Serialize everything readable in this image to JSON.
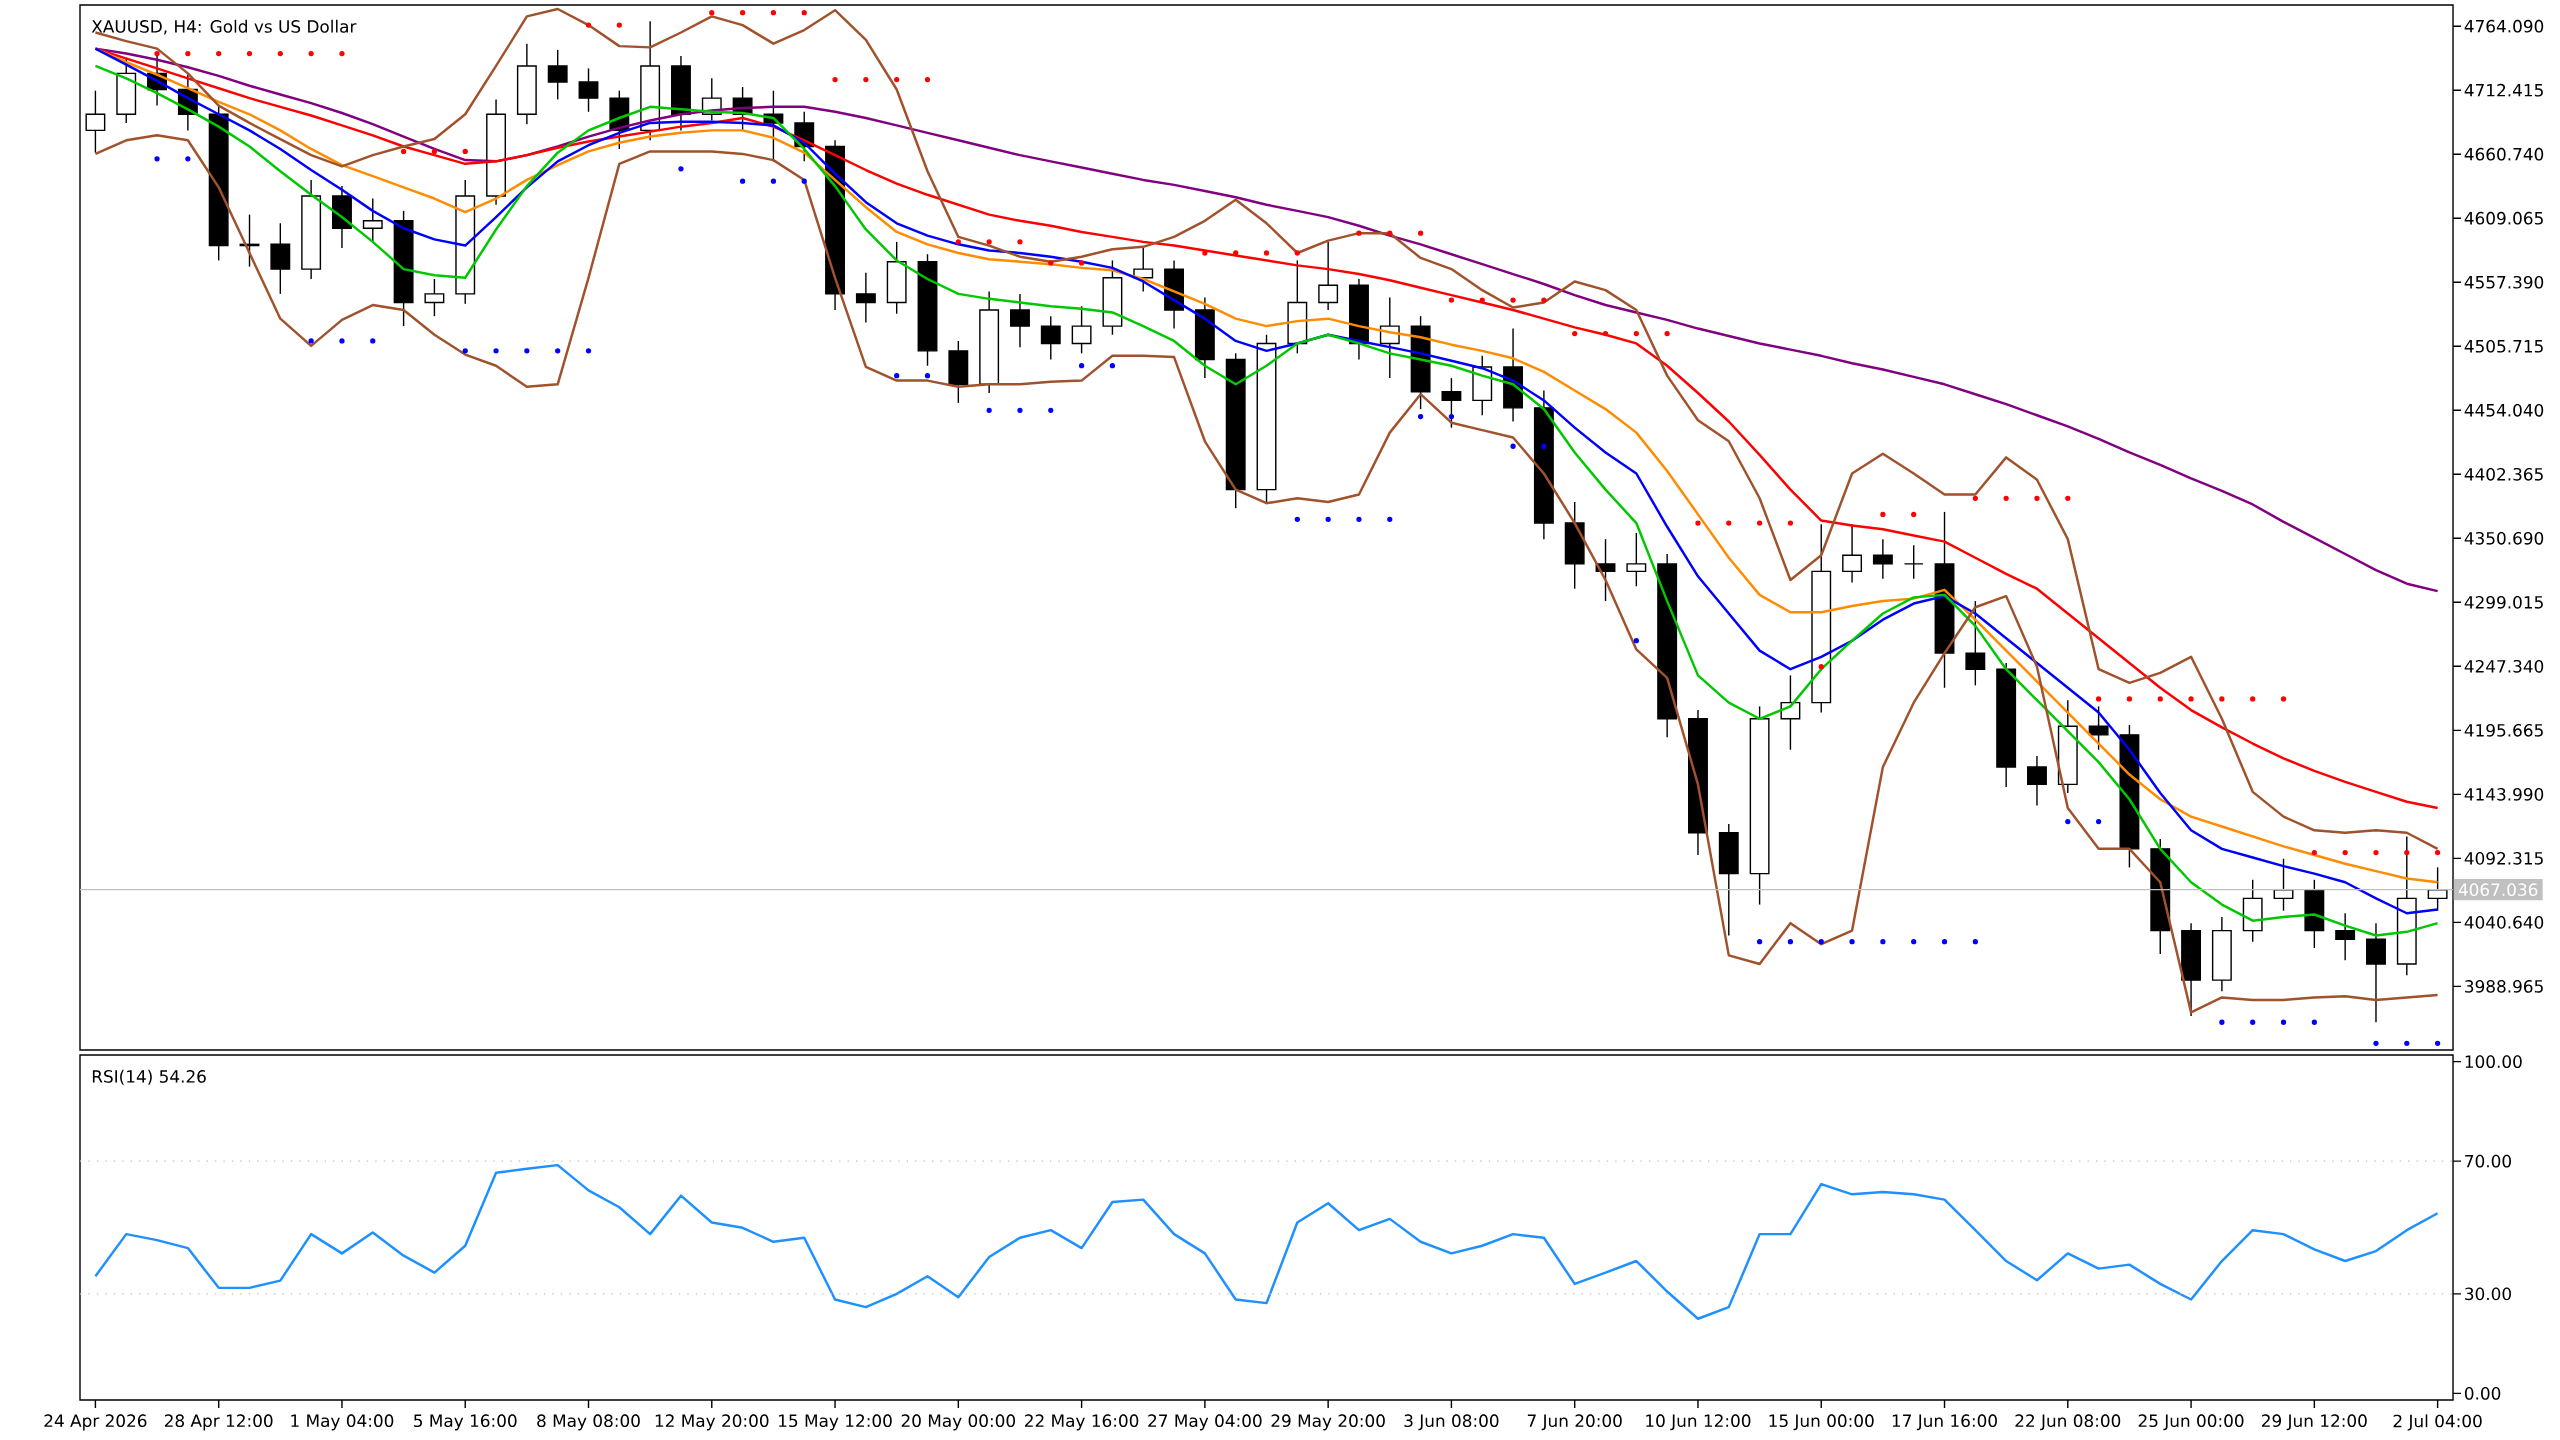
{
  "chart_data": [
    {
      "type": "candlestick",
      "title": "XAUUSD, H4:  Gold vs US Dollar",
      "categories": [
        null,
        null,
        null,
        null,
        null,
        null,
        null,
        null,
        null,
        null,
        null,
        null,
        null,
        null,
        null,
        null,
        null,
        null,
        null,
        null,
        null,
        null,
        null,
        null,
        null,
        null,
        null,
        null,
        null,
        null,
        null,
        null,
        null,
        null,
        null,
        null,
        null,
        null,
        null,
        null,
        null,
        null,
        null,
        null,
        null,
        null,
        null,
        null,
        null,
        null,
        null,
        null,
        null,
        null,
        null,
        null,
        null,
        null,
        null,
        null,
        null,
        null,
        null,
        null,
        null,
        null,
        null,
        null,
        null,
        null,
        null,
        null,
        null,
        null,
        null,
        null,
        null
      ],
      "ohlc": [
        [
          4680,
          4712,
          4662,
          4693
        ],
        [
          4693,
          4738,
          4686,
          4726
        ],
        [
          4726,
          4740,
          4700,
          4713
        ],
        [
          4713,
          4725,
          4680,
          4693
        ],
        [
          4693,
          4700,
          4575,
          4587
        ],
        [
          4587,
          4612,
          4570,
          4588
        ],
        [
          4588,
          4605,
          4548,
          4568
        ],
        [
          4568,
          4640,
          4560,
          4627
        ],
        [
          4627,
          4635,
          4585,
          4601
        ],
        [
          4601,
          4625,
          4590,
          4607
        ],
        [
          4607,
          4615,
          4522,
          4541
        ],
        [
          4541,
          4560,
          4530,
          4548
        ],
        [
          4548,
          4640,
          4540,
          4627
        ],
        [
          4627,
          4705,
          4620,
          4693
        ],
        [
          4693,
          4750,
          4685,
          4732
        ],
        [
          4732,
          4745,
          4705,
          4719
        ],
        [
          4719,
          4730,
          4695,
          4706
        ],
        [
          4706,
          4712,
          4665,
          4680
        ],
        [
          4680,
          4768,
          4672,
          4732
        ],
        [
          4732,
          4740,
          4680,
          4693
        ],
        [
          4693,
          4722,
          4688,
          4706
        ],
        [
          4706,
          4715,
          4680,
          4693
        ],
        [
          4693,
          4712,
          4655,
          4686
        ],
        [
          4686,
          4695,
          4655,
          4667
        ],
        [
          4667,
          4672,
          4535,
          4548
        ],
        [
          4548,
          4565,
          4525,
          4541
        ],
        [
          4541,
          4590,
          4532,
          4574
        ],
        [
          4574,
          4580,
          4490,
          4502
        ],
        [
          4502,
          4510,
          4460,
          4475
        ],
        [
          4475,
          4550,
          4468,
          4535
        ],
        [
          4535,
          4548,
          4505,
          4522
        ],
        [
          4522,
          4530,
          4495,
          4508
        ],
        [
          4508,
          4538,
          4500,
          4522
        ],
        [
          4522,
          4575,
          4515,
          4561
        ],
        [
          4561,
          4585,
          4550,
          4568
        ],
        [
          4568,
          4575,
          4520,
          4535
        ],
        [
          4535,
          4545,
          4480,
          4495
        ],
        [
          4495,
          4500,
          4375,
          4390
        ],
        [
          4390,
          4515,
          4380,
          4508
        ],
        [
          4508,
          4575,
          4500,
          4541
        ],
        [
          4541,
          4590,
          4535,
          4555
        ],
        [
          4555,
          4560,
          4495,
          4508
        ],
        [
          4508,
          4545,
          4480,
          4522
        ],
        [
          4522,
          4530,
          4455,
          4469
        ],
        [
          4469,
          4480,
          4440,
          4462
        ],
        [
          4462,
          4498,
          4450,
          4489
        ],
        [
          4489,
          4520,
          4445,
          4456
        ],
        [
          4456,
          4470,
          4350,
          4363
        ],
        [
          4363,
          4380,
          4310,
          4330
        ],
        [
          4330,
          4350,
          4300,
          4324
        ],
        [
          4324,
          4355,
          4312,
          4330
        ],
        [
          4330,
          4338,
          4190,
          4205
        ],
        [
          4205,
          4212,
          4095,
          4113
        ],
        [
          4113,
          4120,
          4030,
          4080
        ],
        [
          4080,
          4215,
          4055,
          4205
        ],
        [
          4205,
          4240,
          4180,
          4218
        ],
        [
          4218,
          4362,
          4210,
          4324
        ],
        [
          4324,
          4362,
          4315,
          4337
        ],
        [
          4337,
          4350,
          4318,
          4330
        ],
        [
          4330,
          4345,
          4318,
          4330
        ],
        [
          4330,
          4372,
          4230,
          4258
        ],
        [
          4258,
          4300,
          4232,
          4245
        ],
        [
          4245,
          4250,
          4150,
          4166
        ],
        [
          4166,
          4175,
          4135,
          4152
        ],
        [
          4152,
          4220,
          4145,
          4199
        ],
        [
          4199,
          4215,
          4180,
          4192
        ],
        [
          4192,
          4200,
          4085,
          4100
        ],
        [
          4100,
          4108,
          4015,
          4034
        ],
        [
          4034,
          4040,
          3965,
          3994
        ],
        [
          3994,
          4045,
          3985,
          4034
        ],
        [
          4034,
          4075,
          4025,
          4060
        ],
        [
          4060,
          4092,
          4050,
          4067
        ],
        [
          4067,
          4075,
          4020,
          4034
        ],
        [
          4034,
          4048,
          4010,
          4027
        ],
        [
          4027,
          4040,
          3960,
          4007
        ],
        [
          4007,
          4110,
          3998,
          4060
        ],
        [
          4060,
          4085,
          4050,
          4067
        ]
      ],
      "color": "#000000",
      "ylim": [
        3937.6,
        4781.2
      ],
      "yticks": [
        3988.965,
        {
          "value": 4040.64,
          "label": "4040.640"
        },
        4092.315,
        {
          "value": 4143.99,
          "label": "4143.990"
        },
        4195.665,
        {
          "value": 4247.34,
          "label": "4247.340"
        },
        4299.015,
        {
          "value": 4350.69,
          "label": "4350.690"
        },
        4402.365,
        {
          "value": 4454.04,
          "label": "4454.040"
        },
        4505.715,
        {
          "value": 4557.39,
          "label": "4557.390"
        },
        4609.065,
        {
          "value": 4660.74,
          "label": "4660.740"
        },
        4712.415,
        {
          "value": 4764.09,
          "label": "4764.090"
        }
      ],
      "tick_labels": "y",
      "ref_lines": [
        {
          "axis": "y",
          "value": 4067.036,
          "label": "4067.036",
          "color": "#c0c0c0"
        }
      ],
      "series": [
        {
          "type": "line",
          "color": "#800080",
          "values": [
            4746,
            4742,
            4737,
            4731,
            4724,
            4716,
            4709,
            4702,
            4694,
            4685,
            4675,
            4665,
            4656,
            4655,
            4660,
            4667,
            4675,
            4682,
            4688,
            4693,
            4696,
            4698,
            4699,
            4699,
            4695,
            4690,
            4684,
            4678,
            4672,
            4666,
            4660,
            4655,
            4650,
            4645,
            4640,
            4636,
            4631,
            4626,
            4620,
            4615,
            4610,
            4603,
            4595,
            4588,
            4580,
            4572,
            4564,
            4556,
            4547,
            4539,
            4533,
            4527,
            4520,
            4514,
            4508,
            4503,
            4498,
            4492,
            4487,
            4481,
            4475,
            4467,
            4459,
            4450,
            4441,
            4431,
            4420,
            4410,
            4399,
            4389,
            4378,
            4364,
            4351,
            4338,
            4325,
            4314,
            4308
          ]
        },
        {
          "type": "line",
          "color": "#ff0000",
          "values": [
            4746,
            4738,
            4730,
            4722,
            4714,
            4706,
            4699,
            4692,
            4684,
            4676,
            4667,
            4660,
            4653,
            4655,
            4660,
            4666,
            4671,
            4675,
            4679,
            4683,
            4686,
            4690,
            4683,
            4672,
            4660,
            4648,
            4637,
            4628,
            4620,
            4612,
            4607,
            4603,
            4598,
            4594,
            4590,
            4587,
            4583,
            4579,
            4575,
            4571,
            4568,
            4564,
            4559,
            4553,
            4547,
            4541,
            4535,
            4528,
            4521,
            4515,
            4508,
            4490,
            4468,
            4445,
            4418,
            4390,
            4365,
            4361,
            4358,
            4353,
            4348,
            4335,
            4322,
            4310,
            4290,
            4270,
            4250,
            4230,
            4212,
            4198,
            4185,
            4173,
            4163,
            4154,
            4146,
            4138,
            4133
          ]
        },
        {
          "type": "line",
          "color": "#ff8c00",
          "values": [
            4746,
            4735,
            4725,
            4714,
            4703,
            4693,
            4680,
            4665,
            4652,
            4643,
            4634,
            4625,
            4614,
            4625,
            4640,
            4652,
            4663,
            4670,
            4675,
            4678,
            4680,
            4680,
            4674,
            4662,
            4640,
            4618,
            4598,
            4588,
            4581,
            4576,
            4574,
            4572,
            4569,
            4567,
            4560,
            4550,
            4540,
            4528,
            4522,
            4526,
            4528,
            4522,
            4517,
            4513,
            4507,
            4502,
            4496,
            4485,
            4470,
            4455,
            4436,
            4405,
            4370,
            4335,
            4305,
            4291,
            4291,
            4296,
            4300,
            4302,
            4309,
            4285,
            4260,
            4235,
            4210,
            4185,
            4160,
            4140,
            4126,
            4118,
            4110,
            4102,
            4095,
            4088,
            4082,
            4076,
            4073
          ]
        },
        {
          "type": "line",
          "color": "#0000ff",
          "values": [
            4746,
            4733,
            4720,
            4706,
            4693,
            4680,
            4665,
            4648,
            4632,
            4615,
            4601,
            4592,
            4587,
            4610,
            4634,
            4655,
            4668,
            4678,
            4686,
            4687,
            4687,
            4686,
            4684,
            4670,
            4645,
            4622,
            4605,
            4595,
            4588,
            4583,
            4581,
            4578,
            4574,
            4569,
            4558,
            4543,
            4528,
            4510,
            4502,
            4508,
            4515,
            4510,
            4505,
            4500,
            4494,
            4488,
            4478,
            4462,
            4440,
            4420,
            4403,
            4360,
            4320,
            4290,
            4260,
            4245,
            4255,
            4268,
            4285,
            4298,
            4304,
            4290,
            4270,
            4250,
            4230,
            4210,
            4180,
            4145,
            4115,
            4100,
            4093,
            4086,
            4080,
            4073,
            4060,
            4048,
            4051
          ]
        },
        {
          "type": "line",
          "color": "#00c800",
          "values": [
            4732,
            4722,
            4710,
            4697,
            4683,
            4667,
            4647,
            4628,
            4610,
            4590,
            4568,
            4563,
            4561,
            4600,
            4635,
            4662,
            4680,
            4690,
            4699,
            4697,
            4695,
            4694,
            4690,
            4665,
            4635,
            4600,
            4575,
            4560,
            4548,
            4544,
            4541,
            4538,
            4536,
            4533,
            4522,
            4510,
            4490,
            4475,
            4490,
            4508,
            4515,
            4508,
            4500,
            4495,
            4490,
            4482,
            4475,
            4455,
            4420,
            4390,
            4363,
            4300,
            4240,
            4218,
            4205,
            4215,
            4245,
            4268,
            4290,
            4303,
            4305,
            4280,
            4245,
            4220,
            4195,
            4170,
            4140,
            4100,
            4073,
            4055,
            4042,
            4045,
            4047,
            4038,
            4030,
            4033,
            4040
          ]
        },
        {
          "type": "line",
          "color": "#a0522d",
          "values": [
            4759,
            4752,
            4746,
            4726,
            4700,
            4686,
            4673,
            4660,
            4651,
            4660,
            4667,
            4673,
            4693,
            4732,
            4772,
            4778,
            4765,
            4748,
            4747,
            4759,
            4772,
            4765,
            4750,
            4761,
            4777,
            4753,
            4713,
            4647,
            4594,
            4587,
            4578,
            4574,
            4578,
            4584,
            4586,
            4594,
            4607,
            4624,
            4605,
            4581,
            4591,
            4597,
            4597,
            4577,
            4568,
            4551,
            4537,
            4541,
            4558,
            4551,
            4535,
            4482,
            4446,
            4429,
            4383,
            4317,
            4337,
            4403,
            4419,
            4403,
            4386,
            4386,
            4416,
            4398,
            4350,
            4245,
            4234,
            4242,
            4255,
            4205,
            4146,
            4126,
            4115,
            4113,
            4115,
            4113,
            4100
          ]
        },
        {
          "type": "line",
          "color": "#a0522d",
          "values": [
            4661,
            4672,
            4676,
            4672,
            4634,
            4581,
            4528,
            4506,
            4527,
            4539,
            4535,
            4515,
            4499,
            4490,
            4473,
            4475,
            4561,
            4653,
            4663,
            4663,
            4663,
            4661,
            4656,
            4640,
            4561,
            4489,
            4478,
            4478,
            4473,
            4475,
            4475,
            4477,
            4478,
            4498,
            4498,
            4497,
            4429,
            4390,
            4379,
            4383,
            4380,
            4386,
            4436,
            4467,
            4444,
            4438,
            4432,
            4403,
            4363,
            4317,
            4261,
            4238,
            4152,
            4014,
            4007,
            4040,
            4023,
            4034,
            4166,
            4218,
            4258,
            4295,
            4304,
            4247,
            4133,
            4100,
            4100,
            4073,
            3968,
            3980,
            3978,
            3978,
            3980,
            3981,
            3978,
            3980,
            3982
          ]
        },
        {
          "type": "scatter",
          "color": "#ff0000",
          "marker": "circle",
          "values": [
            null,
            null,
            4742,
            4742,
            4742,
            4742,
            4742,
            4742,
            4742,
            null,
            4663,
            4663,
            4663,
            null,
            null,
            null,
            4765,
            4765,
            null,
            null,
            4775,
            4775,
            4775,
            4775,
            4721,
            4721,
            4721,
            4721,
            4590,
            4590,
            4590,
            4573,
            4573,
            null,
            null,
            null,
            4581,
            4581,
            4581,
            4581,
            null,
            4597,
            4597,
            4597,
            4543,
            4543,
            4543,
            4543,
            4516,
            4516,
            4516,
            4516,
            4363,
            4363,
            4363,
            4363,
            4247,
            null,
            4370,
            4370,
            null,
            4383,
            4383,
            4383,
            4383,
            4221,
            4221,
            4221,
            4221,
            4221,
            4221,
            4221,
            4097,
            4097,
            4097,
            4097,
            4097
          ]
        },
        {
          "type": "scatter",
          "color": "#0000ff",
          "marker": "circle",
          "values": [
            null,
            null,
            4657,
            4657,
            null,
            null,
            null,
            4510,
            4510,
            4510,
            null,
            null,
            4502,
            4502,
            4502,
            4502,
            4502,
            null,
            null,
            4649,
            null,
            4639,
            4639,
            4639,
            null,
            null,
            4482,
            4482,
            null,
            4454,
            4454,
            4454,
            4490,
            4490,
            null,
            null,
            null,
            null,
            null,
            4366,
            4366,
            4366,
            4366,
            4449,
            4449,
            null,
            4425,
            4425,
            null,
            null,
            4268,
            null,
            null,
            null,
            4025,
            4025,
            4025,
            4025,
            4025,
            4025,
            4025,
            4025,
            null,
            null,
            4122,
            4122,
            null,
            null,
            null,
            3960,
            3960,
            3960,
            3960,
            null,
            3943,
            3943,
            3943
          ]
        }
      ]
    },
    {
      "type": "line",
      "title": "RSI(14) 54.26",
      "categories": [
        "24 Apr 2026",
        null,
        null,
        null,
        "28 Apr 12:00",
        null,
        null,
        null,
        "1 May 04:00",
        null,
        null,
        null,
        "5 May 16:00",
        null,
        null,
        null,
        "8 May 08:00",
        null,
        null,
        null,
        "12 May 20:00",
        null,
        null,
        null,
        "15 May 12:00",
        null,
        null,
        null,
        "20 May 00:00",
        null,
        null,
        null,
        "22 May 16:00",
        null,
        null,
        null,
        "27 May 04:00",
        null,
        null,
        null,
        "29 May 20:00",
        null,
        null,
        null,
        "3 Jun 08:00",
        null,
        null,
        null,
        "7 Jun 20:00",
        null,
        null,
        null,
        "10 Jun 12:00",
        null,
        null,
        null,
        "15 Jun 00:00",
        null,
        null,
        null,
        "17 Jun 16:00",
        null,
        null,
        null,
        "22 Jun 08:00",
        null,
        null,
        null,
        "25 Jun 00:00",
        null,
        null,
        null,
        "29 Jun 12:00",
        null,
        null,
        null,
        "2 Jul 04:00"
      ],
      "values": [
        35.3,
        48.0,
        46.2,
        43.8,
        31.8,
        31.8,
        34.0,
        48.0,
        42.2,
        48.5,
        41.5,
        36.4,
        44.5,
        66.5,
        67.7,
        68.8,
        61.2,
        56.1,
        48.0,
        59.6,
        51.5,
        49.9,
        45.7,
        46.9,
        28.3,
        26.0,
        30.0,
        35.3,
        29.0,
        41.1,
        46.9,
        49.2,
        43.8,
        57.7,
        58.4,
        48.0,
        42.2,
        28.3,
        27.2,
        51.5,
        57.3,
        49.2,
        52.6,
        45.7,
        42.2,
        44.5,
        48.0,
        46.9,
        33.0,
        36.4,
        39.9,
        30.7,
        22.5,
        26.0,
        48.0,
        48.0,
        63.1,
        60.0,
        60.7,
        60.0,
        58.4,
        49.2,
        39.9,
        34.1,
        42.2,
        37.6,
        38.8,
        33.0,
        28.3,
        39.9,
        49.2,
        48.0,
        43.4,
        39.9,
        42.9,
        49.2,
        54.3
      ],
      "color": "#1e90ff",
      "ylim": [
        -2,
        102
      ],
      "yticks": [
        {
          "value": 0,
          "label": "0.00"
        },
        {
          "value": 30,
          "label": "30.00"
        },
        {
          "value": 70,
          "label": "70.00"
        },
        {
          "value": 100,
          "label": "100.00"
        }
      ],
      "ref_lines": [
        {
          "axis": "y",
          "value": 30,
          "color": "#c0c0c0",
          "line_style": "dotted"
        },
        {
          "axis": "y",
          "value": 70,
          "color": "#c0c0c0",
          "line_style": "dotted"
        }
      ]
    }
  ]
}
